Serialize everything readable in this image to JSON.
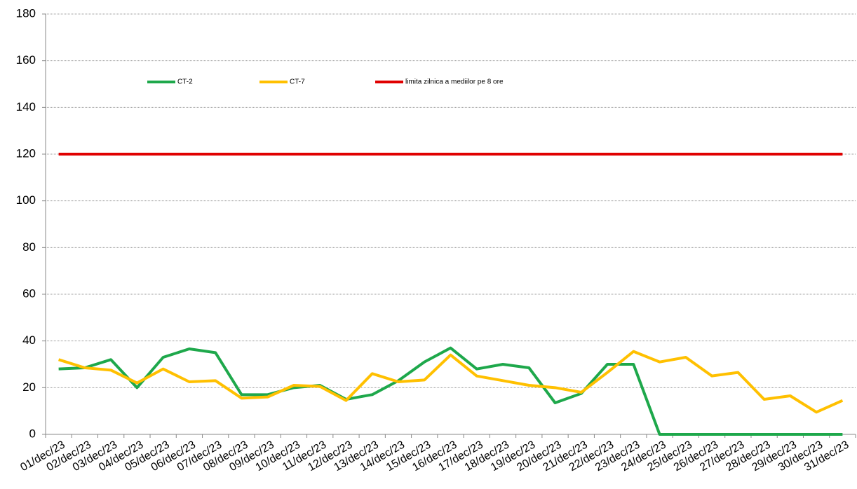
{
  "chart_data": {
    "type": "line",
    "categories": [
      "01/dec/23",
      "02/dec/23",
      "03/dec/23",
      "04/dec/23",
      "05/dec/23",
      "06/dec/23",
      "07/dec/23",
      "08/dec/23",
      "09/dec/23",
      "10/dec/23",
      "11/dec/23",
      "12/dec/23",
      "13/dec/23",
      "14/dec/23",
      "15/dec/23",
      "16/dec/23",
      "17/dec/23",
      "18/dec/23",
      "19/dec/23",
      "20/dec/23",
      "21/dec/23",
      "22/dec/23",
      "23/dec/23",
      "24/dec/23",
      "25/dec/23",
      "26/dec/23",
      "27/dec/23",
      "28/dec/23",
      "29/dec/23",
      "30/dec/23",
      "31/dec/23"
    ],
    "series": [
      {
        "name": "CT-2",
        "color": "#1ea84b",
        "values": [
          28,
          28.5,
          32,
          20,
          33,
          36.6,
          35,
          17,
          17,
          20,
          21,
          15,
          17,
          23,
          31,
          37,
          28,
          30,
          28.5,
          13.5,
          17.5,
          30,
          30,
          0,
          0,
          0,
          0,
          0,
          0,
          0,
          0
        ]
      },
      {
        "name": "CT-7",
        "color": "#ffc000",
        "values": [
          32,
          28.5,
          27.5,
          22,
          28,
          22.5,
          23,
          15.5,
          16,
          21,
          20.5,
          14.5,
          26,
          22.5,
          23.3,
          34,
          25,
          23,
          21,
          20,
          18,
          26.5,
          35.5,
          31,
          33,
          25,
          26.5,
          15,
          16.5,
          9.5,
          14.5
        ]
      },
      {
        "name": "limita zilnica a mediilor pe 8 ore",
        "color": "#e00000",
        "values": [
          120,
          120,
          120,
          120,
          120,
          120,
          120,
          120,
          120,
          120,
          120,
          120,
          120,
          120,
          120,
          120,
          120,
          120,
          120,
          120,
          120,
          120,
          120,
          120,
          120,
          120,
          120,
          120,
          120,
          120,
          120
        ]
      }
    ],
    "ylim": [
      0,
      180
    ],
    "yticks": [
      0,
      20,
      40,
      60,
      80,
      100,
      120,
      140,
      160,
      180
    ],
    "grid": true,
    "legend": "top"
  }
}
